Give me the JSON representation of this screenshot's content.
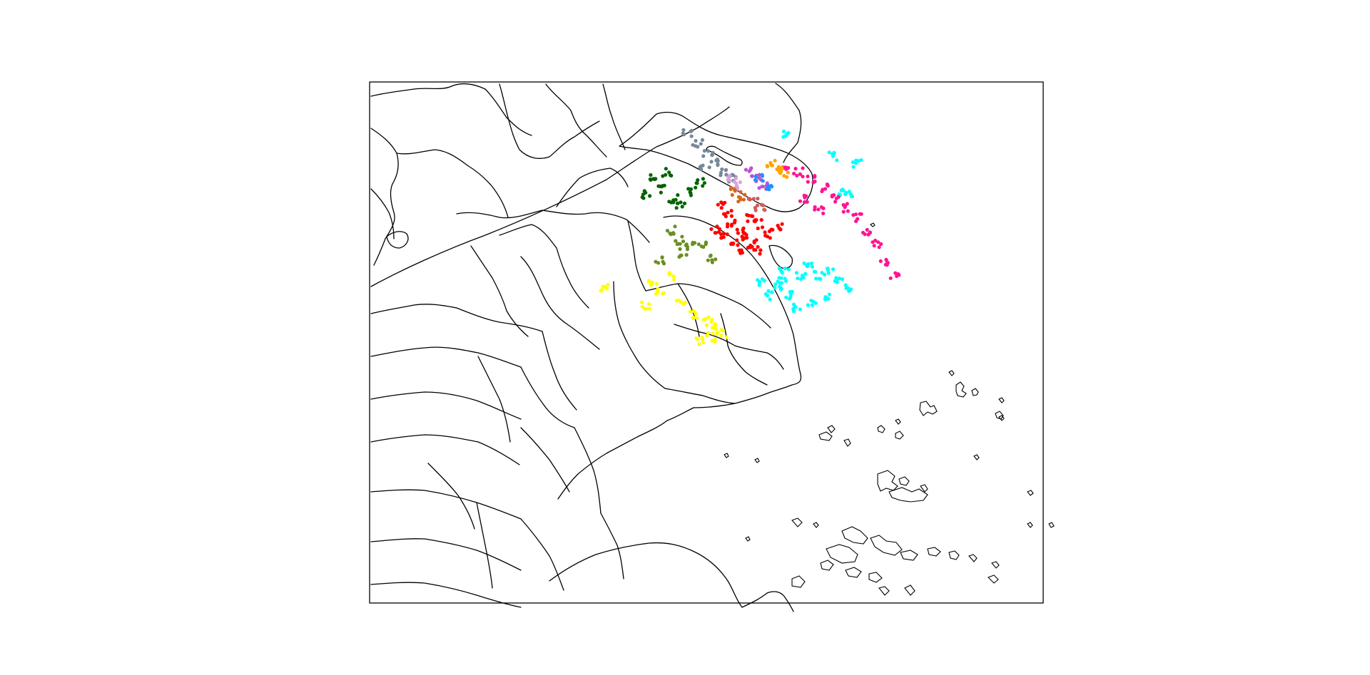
{
  "colors": {
    "boundary": "#000000",
    "frame": "#000000",
    "background": "#ffffff"
  },
  "map": {
    "type": "scatter-on-basemap",
    "series": [
      {
        "color": "#00ffff",
        "points": [
          [
            1.21,
            0.16
          ],
          [
            1.34,
            0.23
          ],
          [
            1.41,
            0.25
          ],
          [
            1.37,
            0.34
          ],
          [
            1.39,
            0.35
          ],
          [
            1.13,
            0.62
          ],
          [
            1.18,
            0.63
          ],
          [
            1.2,
            0.61
          ],
          [
            1.25,
            0.6
          ],
          [
            1.3,
            0.6
          ],
          [
            1.36,
            0.62
          ],
          [
            1.22,
            0.66
          ],
          [
            1.24,
            0.7
          ],
          [
            1.28,
            0.68
          ],
          [
            1.32,
            0.66
          ],
          [
            1.38,
            0.64
          ],
          [
            1.16,
            0.66
          ],
          [
            1.2,
            0.58
          ],
          [
            1.27,
            0.57
          ],
          [
            1.33,
            0.59
          ]
        ]
      },
      {
        "color": "#ffff00",
        "points": [
          [
            0.68,
            0.64
          ],
          [
            0.8,
            0.69
          ],
          [
            0.84,
            0.65
          ],
          [
            0.9,
            0.68
          ],
          [
            0.94,
            0.72
          ],
          [
            0.98,
            0.74
          ],
          [
            1.0,
            0.76
          ],
          [
            1.02,
            0.78
          ],
          [
            0.99,
            0.79
          ],
          [
            0.96,
            0.8
          ],
          [
            0.88,
            0.6
          ],
          [
            0.82,
            0.62
          ]
        ]
      },
      {
        "color": "#ff0000",
        "points": [
          [
            1.02,
            0.38
          ],
          [
            1.04,
            0.41
          ],
          [
            1.05,
            0.44
          ],
          [
            1.07,
            0.46
          ],
          [
            1.09,
            0.48
          ],
          [
            1.11,
            0.5
          ],
          [
            1.13,
            0.44
          ],
          [
            1.06,
            0.5
          ],
          [
            1.0,
            0.46
          ],
          [
            1.1,
            0.42
          ],
          [
            1.15,
            0.47
          ],
          [
            1.18,
            0.45
          ],
          [
            1.08,
            0.53
          ],
          [
            1.03,
            0.48
          ],
          [
            1.12,
            0.52
          ]
        ]
      },
      {
        "color": "#ff1493",
        "points": [
          [
            1.2,
            0.26
          ],
          [
            1.24,
            0.28
          ],
          [
            1.28,
            0.3
          ],
          [
            1.32,
            0.33
          ],
          [
            1.35,
            0.36
          ],
          [
            1.38,
            0.39
          ],
          [
            1.41,
            0.42
          ],
          [
            1.44,
            0.46
          ],
          [
            1.47,
            0.5
          ],
          [
            1.49,
            0.56
          ],
          [
            1.52,
            0.6
          ],
          [
            1.26,
            0.36
          ],
          [
            1.3,
            0.4
          ]
        ]
      },
      {
        "color": "#006400",
        "points": [
          [
            0.82,
            0.3
          ],
          [
            0.85,
            0.33
          ],
          [
            0.88,
            0.36
          ],
          [
            0.9,
            0.38
          ],
          [
            0.93,
            0.34
          ],
          [
            0.96,
            0.31
          ],
          [
            0.86,
            0.28
          ],
          [
            0.8,
            0.35
          ]
        ]
      },
      {
        "color": "#6b8e23",
        "points": [
          [
            0.87,
            0.46
          ],
          [
            0.9,
            0.49
          ],
          [
            0.93,
            0.51
          ],
          [
            0.96,
            0.5
          ],
          [
            0.91,
            0.53
          ],
          [
            0.84,
            0.55
          ],
          [
            0.99,
            0.55
          ]
        ]
      },
      {
        "color": "#778899",
        "points": [
          [
            0.92,
            0.16
          ],
          [
            0.95,
            0.19
          ],
          [
            0.98,
            0.22
          ],
          [
            1.0,
            0.25
          ],
          [
            1.02,
            0.28
          ],
          [
            1.05,
            0.3
          ],
          [
            0.97,
            0.27
          ]
        ]
      },
      {
        "color": "#ffa500",
        "points": [
          [
            1.16,
            0.25
          ],
          [
            1.18,
            0.27
          ],
          [
            1.2,
            0.29
          ]
        ]
      },
      {
        "color": "#ba55d3",
        "points": [
          [
            1.1,
            0.28
          ],
          [
            1.12,
            0.3
          ],
          [
            1.14,
            0.32
          ]
        ]
      },
      {
        "color": "#1e90ff",
        "points": [
          [
            1.13,
            0.3
          ],
          [
            1.15,
            0.32
          ]
        ]
      },
      {
        "color": "#dda0dd",
        "points": [
          [
            1.05,
            0.3
          ],
          [
            1.07,
            0.32
          ]
        ]
      },
      {
        "color": "#d2691e",
        "points": [
          [
            1.06,
            0.34
          ],
          [
            1.08,
            0.36
          ]
        ]
      },
      {
        "color": "#cd5c5c",
        "points": [
          [
            1.11,
            0.37
          ],
          [
            1.13,
            0.39
          ]
        ]
      }
    ]
  }
}
